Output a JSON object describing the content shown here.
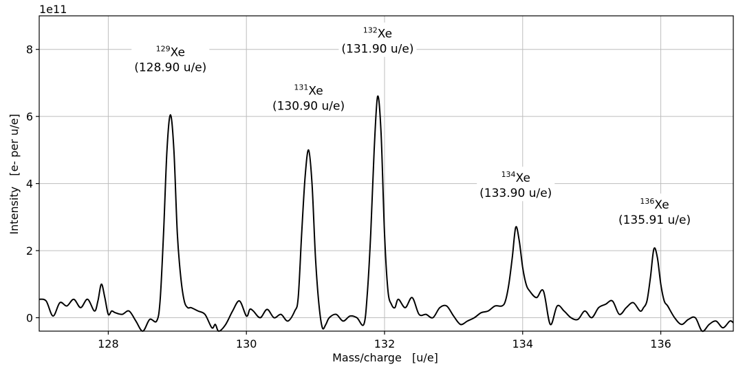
{
  "chart_data": {
    "type": "line",
    "title": "",
    "xlabel": "Mass/charge   [u/e]",
    "ylabel": "Intensity   [e- per u/e]",
    "y_offset_label": "1e11",
    "y_scale": 100000000000.0,
    "xlim": [
      127.0,
      137.05
    ],
    "ylim": [
      -0.4,
      9.0
    ],
    "grid": true,
    "xticks": [
      128,
      130,
      132,
      134,
      136
    ],
    "xtick_labels": [
      "128",
      "130",
      "132",
      "134",
      "136"
    ],
    "yticks": [
      0,
      2,
      4,
      6,
      8
    ],
    "ytick_labels": [
      "0",
      "2",
      "4",
      "6",
      "8"
    ],
    "series": [
      {
        "x": [
          127.0,
          127.1,
          127.2,
          127.3,
          127.4,
          127.5,
          127.6,
          127.7,
          127.8,
          127.85,
          127.9,
          127.95,
          128.0,
          128.05,
          128.1,
          128.2,
          128.3,
          128.4,
          128.5,
          128.6,
          128.7,
          128.75,
          128.8,
          128.85,
          128.9,
          128.95,
          129.0,
          129.05,
          129.1,
          129.15,
          129.2,
          129.3,
          129.4,
          129.5,
          129.55,
          129.6,
          129.7,
          129.8,
          129.9,
          130.0,
          130.05,
          130.1,
          130.2,
          130.3,
          130.4,
          130.5,
          130.6,
          130.7,
          130.75,
          130.8,
          130.85,
          130.9,
          130.95,
          131.0,
          131.05,
          131.1,
          131.15,
          131.2,
          131.3,
          131.4,
          131.5,
          131.6,
          131.7,
          131.75,
          131.8,
          131.85,
          131.9,
          131.95,
          132.0,
          132.05,
          132.1,
          132.15,
          132.2,
          132.3,
          132.4,
          132.5,
          132.6,
          132.7,
          132.8,
          132.9,
          133.0,
          133.1,
          133.2,
          133.3,
          133.4,
          133.5,
          133.6,
          133.7,
          133.75,
          133.8,
          133.85,
          133.9,
          133.95,
          134.0,
          134.05,
          134.1,
          134.2,
          134.3,
          134.4,
          134.5,
          134.6,
          134.7,
          134.8,
          134.9,
          135.0,
          135.1,
          135.2,
          135.3,
          135.4,
          135.5,
          135.6,
          135.7,
          135.75,
          135.8,
          135.85,
          135.9,
          135.95,
          136.0,
          136.05,
          136.1,
          136.2,
          136.3,
          136.4,
          136.5,
          136.6,
          136.7,
          136.8,
          136.9,
          137.0,
          137.05
        ],
        "y": [
          0.55,
          0.5,
          0.05,
          0.45,
          0.35,
          0.55,
          0.3,
          0.55,
          0.2,
          0.5,
          1.0,
          0.6,
          0.1,
          0.2,
          0.15,
          0.1,
          0.2,
          -0.1,
          -0.4,
          -0.05,
          -0.1,
          0.5,
          2.5,
          5.0,
          6.05,
          5.0,
          2.5,
          1.2,
          0.5,
          0.3,
          0.3,
          0.2,
          0.1,
          -0.3,
          -0.2,
          -0.4,
          -0.2,
          0.2,
          0.5,
          0.05,
          0.25,
          0.2,
          0.0,
          0.25,
          0.0,
          0.1,
          -0.1,
          0.2,
          0.6,
          2.5,
          4.2,
          5.0,
          4.0,
          1.8,
          0.4,
          -0.3,
          -0.2,
          0.0,
          0.1,
          -0.1,
          0.05,
          0.0,
          -0.2,
          0.7,
          2.5,
          5.0,
          6.6,
          5.5,
          2.5,
          0.8,
          0.4,
          0.3,
          0.55,
          0.3,
          0.6,
          0.1,
          0.1,
          0.0,
          0.3,
          0.35,
          0.05,
          -0.2,
          -0.1,
          0.0,
          0.15,
          0.2,
          0.35,
          0.35,
          0.5,
          1.0,
          1.8,
          2.7,
          2.3,
          1.5,
          1.0,
          0.8,
          0.6,
          0.8,
          -0.2,
          0.35,
          0.2,
          0.0,
          -0.05,
          0.2,
          0.0,
          0.3,
          0.4,
          0.5,
          0.1,
          0.3,
          0.45,
          0.2,
          0.3,
          0.5,
          1.2,
          2.05,
          1.8,
          1.0,
          0.5,
          0.35,
          0.0,
          -0.2,
          -0.05,
          0.0,
          -0.4,
          -0.2,
          -0.1,
          -0.3,
          -0.1,
          -0.15
        ]
      }
    ],
    "annotations": [
      {
        "x": 128.9,
        "y": 7.8,
        "isotope": "129",
        "element": "Xe",
        "mass_label": "(128.90 u/e)"
      },
      {
        "x": 130.9,
        "y": 6.65,
        "isotope": "131",
        "element": "Xe",
        "mass_label": "(130.90 u/e)"
      },
      {
        "x": 131.9,
        "y": 8.35,
        "isotope": "132",
        "element": "Xe",
        "mass_label": "(131.90 u/e)"
      },
      {
        "x": 133.9,
        "y": 4.05,
        "isotope": "134",
        "element": "Xe",
        "mass_label": "(133.90 u/e)"
      },
      {
        "x": 135.91,
        "y": 3.25,
        "isotope": "136",
        "element": "Xe",
        "mass_label": "(135.91 u/e)"
      }
    ]
  }
}
